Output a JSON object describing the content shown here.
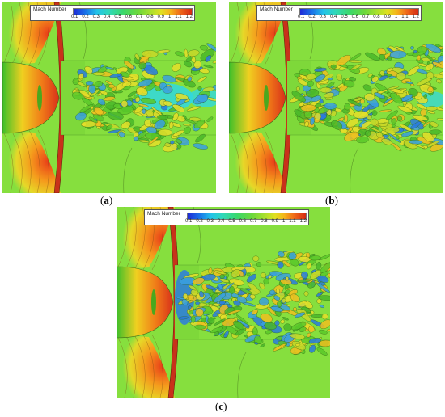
{
  "legend": {
    "title": "Mach Number",
    "ticks": [
      "0.1",
      "0.2",
      "0.3",
      "0.4",
      "0.5",
      "0.6",
      "0.7",
      "0.8",
      "0.9",
      "1",
      "1.1",
      "1.2"
    ]
  },
  "panels": [
    {
      "id": "a",
      "label": "a"
    },
    {
      "id": "b",
      "label": "b"
    },
    {
      "id": "c",
      "label": "c"
    }
  ],
  "colors": {
    "background": "#86df3e",
    "shock_red": "#e8401c",
    "shock_orange": "#f0a020",
    "low_mach_blue": "#2a7be0",
    "cyan": "#30d8e0",
    "yellow": "#e6e02a"
  }
}
